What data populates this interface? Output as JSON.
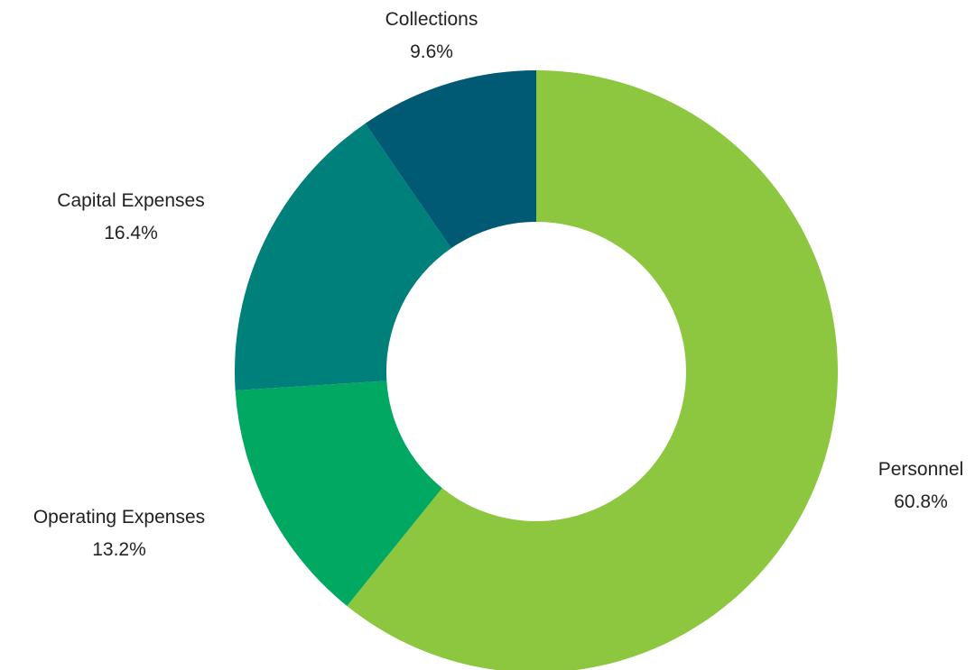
{
  "chart_data": {
    "type": "pie",
    "donut": true,
    "title": "",
    "slices": [
      {
        "label": "Personnel",
        "value": 60.8,
        "value_label": "60.8%",
        "color": "#8dc63f"
      },
      {
        "label": "Operating Expenses",
        "value": 13.2,
        "value_label": "13.2%",
        "color": "#00a862"
      },
      {
        "label": "Capital Expenses",
        "value": 16.4,
        "value_label": "16.4%",
        "color": "#00807a"
      },
      {
        "label": "Collections",
        "value": 9.6,
        "value_label": "9.6%",
        "color": "#005a73"
      }
    ],
    "legend": "none"
  }
}
